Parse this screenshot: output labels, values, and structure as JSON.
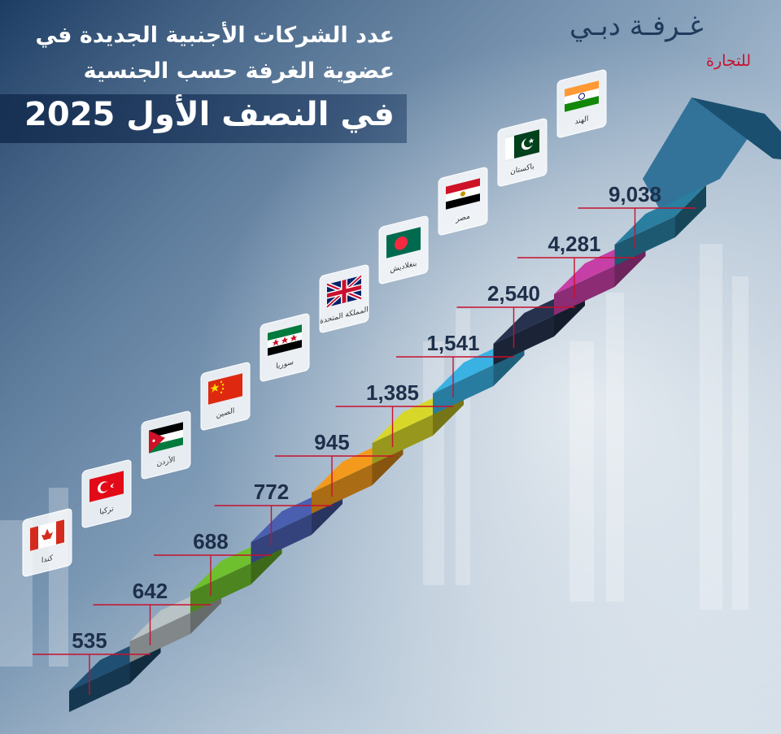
{
  "header": {
    "title_line1": "عدد الشركات الأجنبية الجديدة في",
    "title_line2": "عضوية الغرفة حسب الجنسية",
    "title_line3": "في النصف الأول 2025"
  },
  "logo": {
    "main": "غـرفـة دبـي",
    "sub": "للتجارة"
  },
  "chart_data": {
    "type": "bar",
    "title": "عدد الشركات الأجنبية الجديدة في عضوية الغرفة حسب الجنسية في النصف الأول 2025",
    "categories": [
      "كندا",
      "تركيا",
      "الأردن",
      "الصين",
      "سوريا",
      "المملكة المتحدة",
      "بنغلاديش",
      "مصر",
      "باكستان",
      "الهند"
    ],
    "values": [
      535,
      642,
      688,
      772,
      945,
      1385,
      1541,
      2540,
      4281,
      9038
    ],
    "value_labels": [
      "535",
      "642",
      "688",
      "772",
      "945",
      "1,385",
      "1,541",
      "2,540",
      "4,281",
      "9,038"
    ],
    "step_colors": [
      "#1f4f72",
      "#b9c2c4",
      "#6ec02e",
      "#4a5fb0",
      "#f39a1d",
      "#d7d72a",
      "#39b1e3",
      "#27324f",
      "#c63fa6",
      "#2a7fa1"
    ],
    "flags": [
      "canada-flag-icon",
      "turkey-flag-icon",
      "jordan-flag-icon",
      "china-flag-icon",
      "syria-flag-icon",
      "uk-flag-icon",
      "bangladesh-flag-icon",
      "egypt-flag-icon",
      "pakistan-flag-icon",
      "india-flag-icon"
    ]
  }
}
